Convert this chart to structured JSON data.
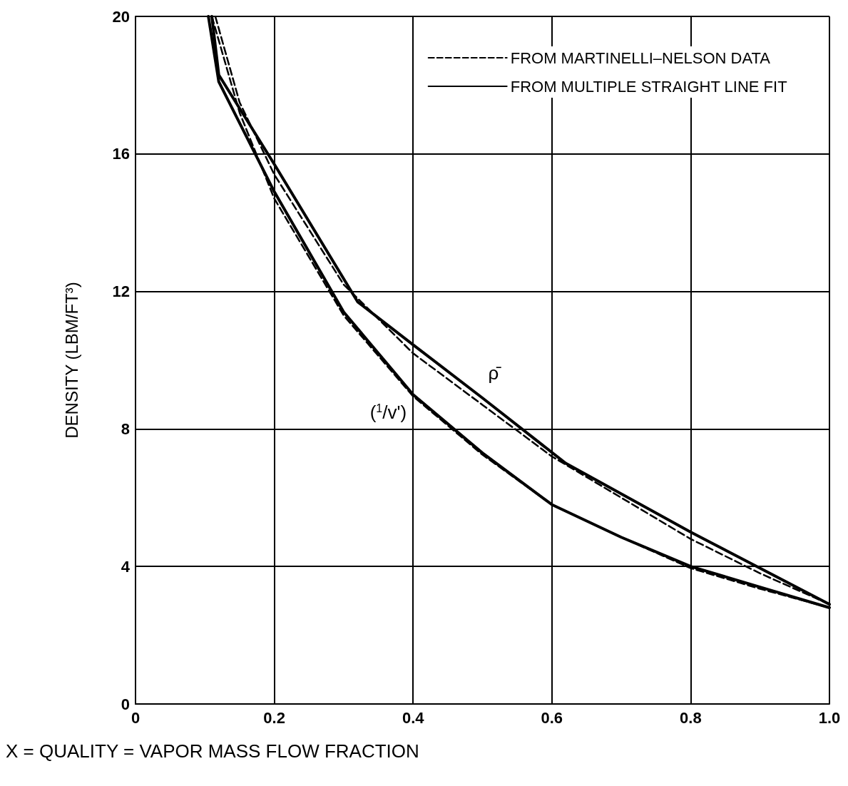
{
  "chart_data": {
    "type": "line",
    "xlabel": "X = QUALITY = VAPOR MASS FLOW FRACTION",
    "ylabel": "DENSITY (LBM/FT³)",
    "xlim": [
      0,
      1
    ],
    "xticks": [
      0,
      0.2,
      0.4,
      0.6,
      0.8,
      {
        "value": 1,
        "label": "1.0"
      }
    ],
    "ylim": [
      0,
      20
    ],
    "yticks": [
      0,
      4,
      8,
      12,
      16,
      20
    ],
    "grid": true,
    "legend": "top right",
    "marker": "none",
    "series": [
      {
        "name": "FROM MARTINELLI–NELSON DATA",
        "color": "#000000",
        "line_style": "dashed",
        "x": [
          0.115,
          0.15,
          0.2,
          0.3,
          0.4,
          0.5,
          0.6,
          0.7,
          0.8,
          0.9,
          1.0
        ],
        "values": [
          20,
          17.5,
          15.4,
          12.2,
          10.2,
          8.7,
          7.2,
          6.0,
          4.8,
          3.8,
          2.9
        ]
      },
      {
        "name": "FROM MULTIPLE STRAIGHT LINE FIT",
        "color": "#000000",
        "line_style": "solid",
        "x": [
          0.11,
          0.12,
          0.2,
          0.32,
          0.4,
          0.5,
          0.62,
          0.8,
          1.0
        ],
        "values": [
          20,
          18.3,
          15.7,
          11.7,
          10.45,
          8.9,
          7.0,
          5.0,
          2.9
        ]
      },
      {
        "color": "#000000",
        "line_style": "dashed",
        "x": [
          0.11,
          0.15,
          0.2,
          0.3,
          0.4,
          0.5,
          0.6,
          0.7,
          0.8,
          0.9,
          1.0
        ],
        "values": [
          20,
          17.2,
          14.7,
          11.3,
          8.95,
          7.25,
          5.8,
          4.85,
          3.95,
          3.35,
          2.8
        ]
      },
      {
        "color": "#000000",
        "line_style": "solid",
        "x": [
          0.105,
          0.12,
          0.2,
          0.3,
          0.4,
          0.5,
          0.6,
          0.7,
          0.8,
          0.9,
          1.0
        ],
        "values": [
          20,
          18.1,
          14.9,
          11.4,
          9.0,
          7.3,
          5.8,
          4.85,
          4.0,
          3.4,
          2.8
        ]
      }
    ],
    "annotations": [
      {
        "text": "ρ̄",
        "x": 0.5,
        "y": 8.9
      },
      {
        "text": "($^{1}$/v')",
        "x": 0.42,
        "y": 8.6
      }
    ]
  }
}
